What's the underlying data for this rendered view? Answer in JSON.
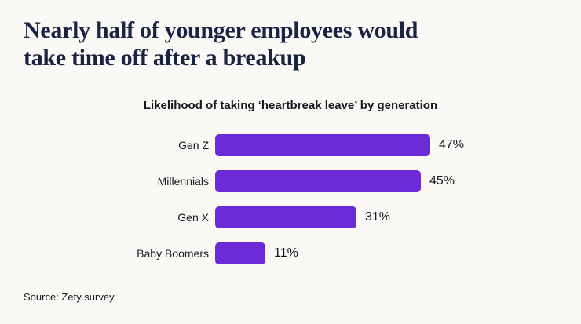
{
  "page": {
    "background": "#FAF9F6",
    "title": "Nearly half of younger employees would take time off after a breakup",
    "title_lines": [
      "Nearly half of younger employees would",
      "take time off after a breakup"
    ],
    "title_color": "#1B2342",
    "text_color": "#17171F",
    "source": "Source: Zety survey"
  },
  "chart_data": {
    "type": "bar",
    "orientation": "horizontal",
    "title": "Likelihood of taking ‘heartbreak leave’ by generation",
    "categories": [
      "Gen Z",
      "Millennials",
      "Gen X",
      "Baby Boomers"
    ],
    "values": [
      47,
      45,
      31,
      11
    ],
    "value_labels": [
      "47%",
      "45%",
      "31%",
      "11%"
    ],
    "unit": "%",
    "bar_color": "#6C2BD6",
    "axis_line_color": "#CCCCCC",
    "xlim": [
      0,
      100
    ],
    "grid": false,
    "legend": false,
    "value_labels_position": "right-of-bar"
  }
}
